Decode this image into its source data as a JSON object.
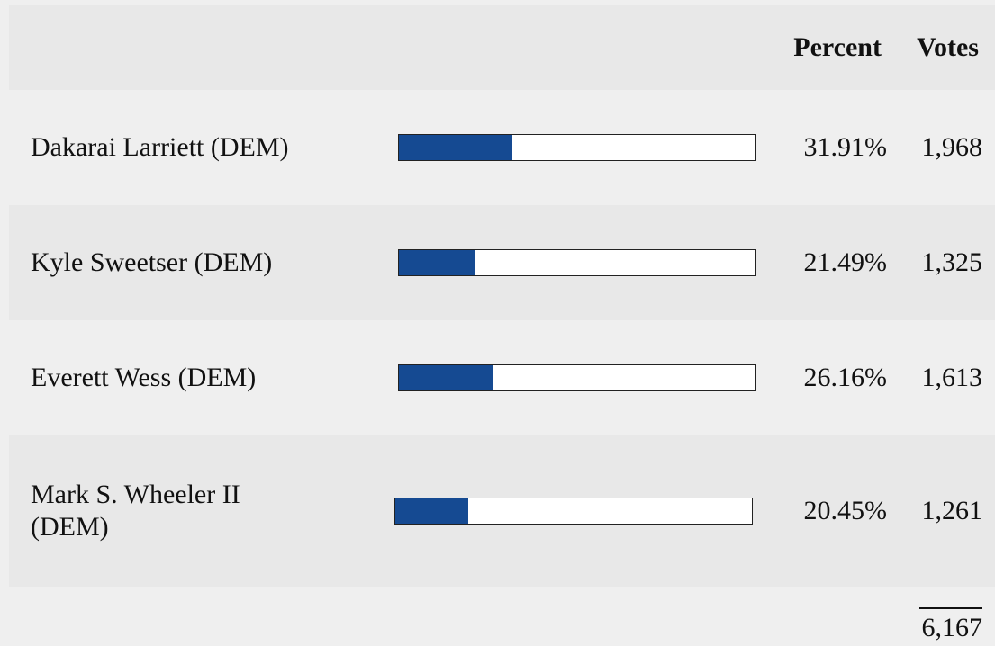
{
  "header": {
    "percent": "Percent",
    "votes": "Votes"
  },
  "rows": [
    {
      "name": "Dakarai Larriett (DEM)",
      "percent": 31.91,
      "percent_label": "31.91%",
      "votes": "1,968"
    },
    {
      "name": "Kyle Sweetser (DEM)",
      "percent": 21.49,
      "percent_label": "21.49%",
      "votes": "1,325"
    },
    {
      "name": "Everett Wess (DEM)",
      "percent": 26.16,
      "percent_label": "26.16%",
      "votes": "1,613"
    },
    {
      "name": "Mark S. Wheeler II (DEM)",
      "percent": 20.45,
      "percent_label": "20.45%",
      "votes": "1,261"
    }
  ],
  "total": "6,167"
}
